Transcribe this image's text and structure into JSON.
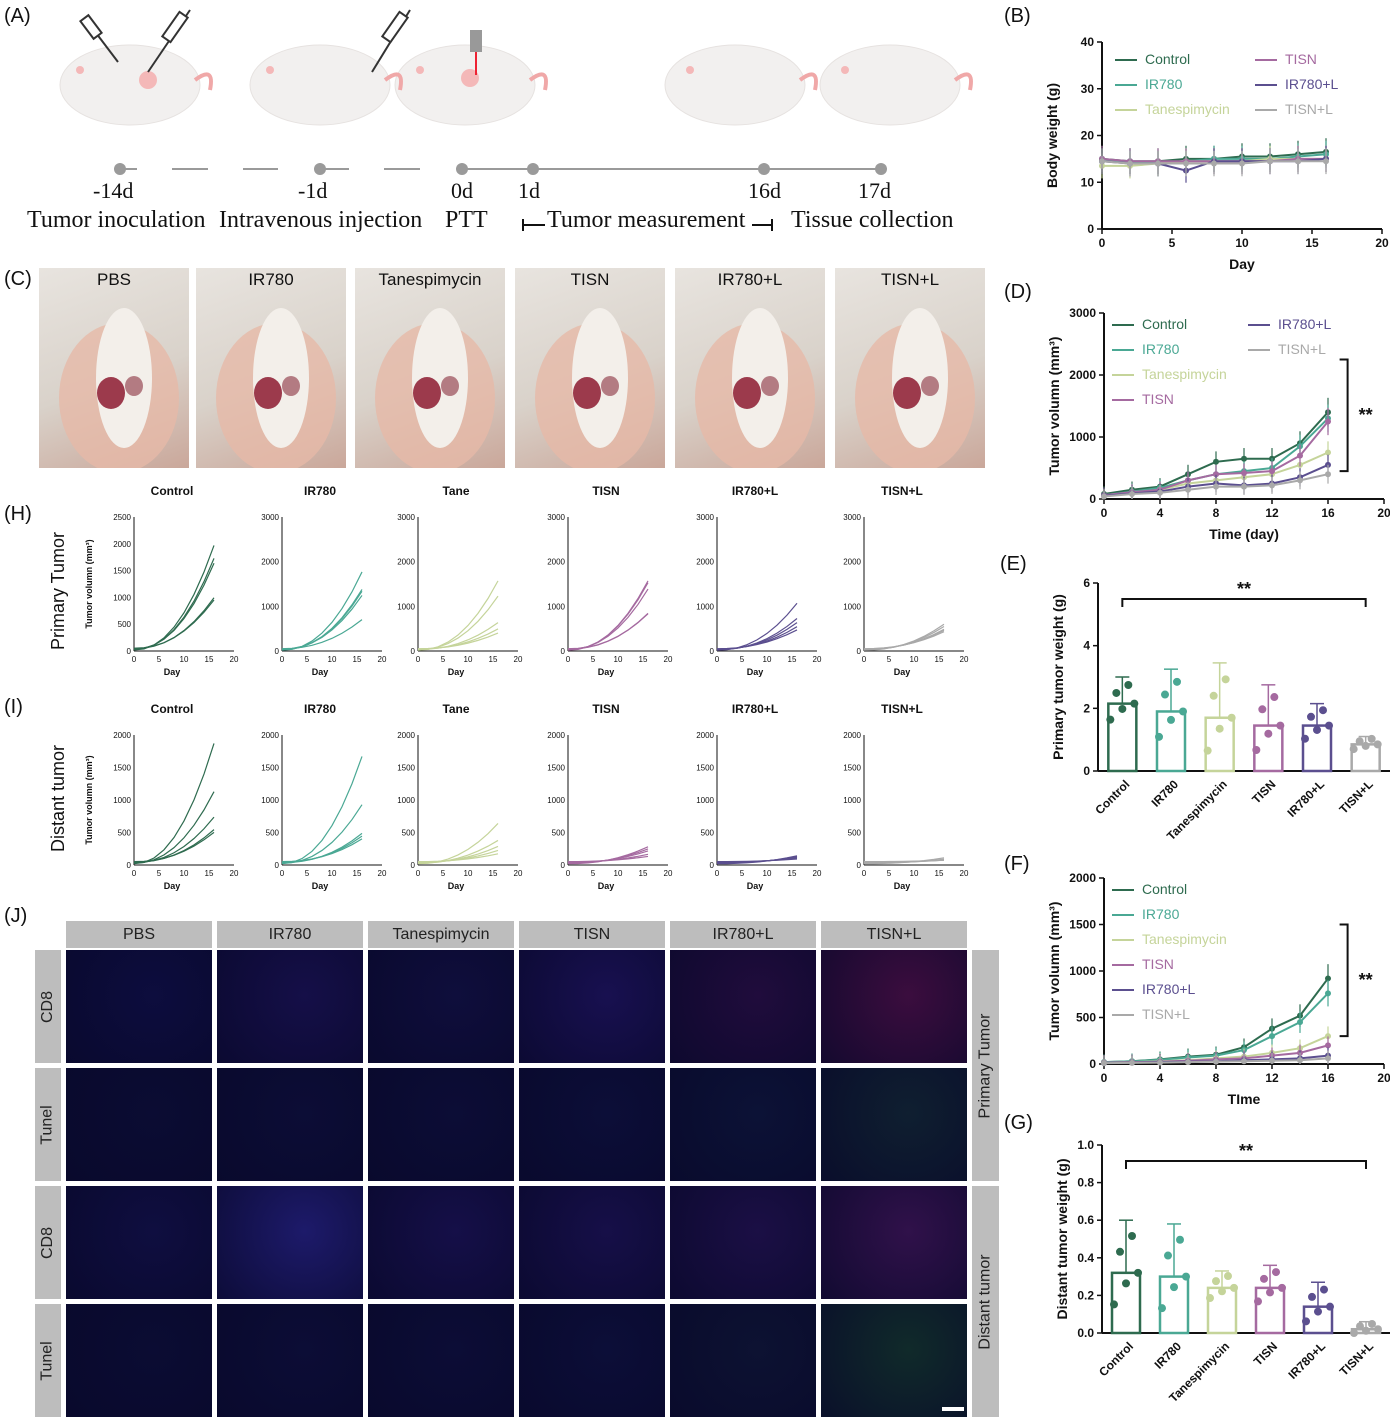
{
  "panels": {
    "A": "(A)",
    "B": "(B)",
    "C": "(C)",
    "D": "(D)",
    "E": "(E)",
    "F": "(F)",
    "G": "(G)",
    "H": "(H)",
    "I": "(I)",
    "J": "(J)"
  },
  "timeline": {
    "days": [
      "-14d",
      "-1d",
      "0d",
      "1d",
      "16d",
      "17d"
    ],
    "steps": [
      "Tumor inoculation",
      "Intravenous injection",
      "PTT",
      "Tumor measurement",
      "Tissue collection"
    ]
  },
  "photos": [
    "PBS",
    "IR780",
    "Tanespimycin",
    "TISN",
    "IR780+L",
    "TISN+L"
  ],
  "row_labels": {
    "H": "Primary Tumor",
    "I": "Distant tumor"
  },
  "fluor": {
    "columns": [
      "PBS",
      "IR780",
      "Tanespimycin",
      "TISN",
      "IR780+L",
      "TISN+L"
    ],
    "rows": [
      "CD8",
      "Tunel",
      "CD8",
      "Tunel"
    ],
    "right": [
      "Primary Tumor",
      "Distant tumor"
    ]
  },
  "colors": {
    "Control": "#2e6b4f",
    "IR780": "#4aa894",
    "Tanespimycin": "#c5d49a",
    "TISN": "#a56aa0",
    "IR780+L": "#5b4f8f",
    "TISN+L": "#a9a9a9"
  },
  "chart_data": [
    {
      "id": "B",
      "type": "line",
      "xlabel": "Day",
      "ylabel": "Body weight (g)",
      "xlim": [
        0,
        20
      ],
      "ylim": [
        0,
        40
      ],
      "xticks": [
        "0",
        "5",
        "10",
        "15",
        "20"
      ],
      "yticks": [
        "0",
        "10",
        "20",
        "30",
        "40"
      ],
      "x": [
        0,
        2,
        4,
        6,
        8,
        10,
        12,
        14,
        16
      ],
      "series": [
        {
          "name": "Control",
          "values": [
            15,
            14.5,
            14.5,
            15,
            15,
            15.5,
            15.5,
            16,
            16.5
          ]
        },
        {
          "name": "IR780",
          "values": [
            14.5,
            14.5,
            14,
            14.5,
            15,
            15,
            15,
            15.5,
            16
          ]
        },
        {
          "name": "Tanespimycin",
          "values": [
            13.5,
            13.5,
            14,
            14.5,
            14.5,
            14.5,
            15,
            15,
            15
          ]
        },
        {
          "name": "TISN",
          "values": [
            15,
            14.5,
            14.5,
            14.5,
            14.5,
            14.5,
            14.5,
            15,
            15
          ]
        },
        {
          "name": "IR780+L",
          "values": [
            14.5,
            14,
            14,
            12.5,
            14.5,
            14.5,
            14.5,
            14.5,
            15
          ]
        },
        {
          "name": "TISN+L",
          "values": [
            14.5,
            14,
            14,
            14,
            14,
            14,
            14.5,
            14.5,
            14.5
          ]
        }
      ]
    },
    {
      "id": "D",
      "type": "line",
      "xlabel": "Time (day)",
      "ylabel": "Tumor volumn (mm³)",
      "xlim": [
        0,
        20
      ],
      "ylim": [
        0,
        3000
      ],
      "xticks": [
        "0",
        "4",
        "8",
        "12",
        "16",
        "20"
      ],
      "yticks": [
        "0",
        "1000",
        "2000",
        "3000"
      ],
      "x": [
        0,
        2,
        4,
        6,
        8,
        10,
        12,
        14,
        16
      ],
      "annotation": "**",
      "series": [
        {
          "name": "Control",
          "values": [
            80,
            150,
            200,
            400,
            600,
            650,
            650,
            900,
            1400
          ]
        },
        {
          "name": "IR780",
          "values": [
            60,
            120,
            180,
            300,
            400,
            450,
            500,
            850,
            1300
          ]
        },
        {
          "name": "Tanespimycin",
          "values": [
            50,
            100,
            150,
            250,
            300,
            350,
            400,
            550,
            750
          ]
        },
        {
          "name": "TISN",
          "values": [
            60,
            110,
            150,
            300,
            400,
            420,
            450,
            700,
            1250
          ]
        },
        {
          "name": "IR780+L",
          "values": [
            50,
            90,
            120,
            200,
            250,
            220,
            250,
            350,
            550
          ]
        },
        {
          "name": "TISN+L",
          "values": [
            40,
            80,
            100,
            150,
            200,
            200,
            220,
            300,
            400
          ]
        }
      ]
    },
    {
      "id": "E",
      "type": "bar",
      "ylabel": "Primary tumor weight (g)",
      "ylim": [
        0,
        6
      ],
      "yticks": [
        "0",
        "2",
        "4",
        "6"
      ],
      "categories": [
        "Control",
        "IR780",
        "Tanespimycin",
        "TISN",
        "IR780+L",
        "TISN+L"
      ],
      "values": [
        2.15,
        1.9,
        1.7,
        1.45,
        1.45,
        0.85
      ],
      "errors": [
        0.85,
        1.35,
        1.75,
        1.3,
        0.7,
        0.25
      ],
      "annotation": "**"
    },
    {
      "id": "F",
      "type": "line",
      "xlabel": "TIme",
      "ylabel": "Tumor volumn (mm³)",
      "xlim": [
        0,
        20
      ],
      "ylim": [
        0,
        2000
      ],
      "xticks": [
        "0",
        "4",
        "8",
        "12",
        "16",
        "20"
      ],
      "yticks": [
        "0",
        "500",
        "1000",
        "1500",
        "2000"
      ],
      "x": [
        0,
        2,
        4,
        6,
        8,
        10,
        12,
        14,
        16
      ],
      "annotation": "**",
      "series": [
        {
          "name": "Control",
          "values": [
            20,
            30,
            50,
            80,
            100,
            180,
            380,
            520,
            920
          ]
        },
        {
          "name": "IR780",
          "values": [
            20,
            30,
            45,
            70,
            90,
            150,
            300,
            450,
            760
          ]
        },
        {
          "name": "Tanespimycin",
          "values": [
            15,
            20,
            30,
            40,
            60,
            80,
            120,
            170,
            300
          ]
        },
        {
          "name": "TISN",
          "values": [
            15,
            20,
            25,
            35,
            50,
            60,
            90,
            120,
            200
          ]
        },
        {
          "name": "IR780+L",
          "values": [
            10,
            15,
            20,
            25,
            30,
            40,
            50,
            60,
            90
          ]
        },
        {
          "name": "TISN+L",
          "values": [
            10,
            12,
            15,
            20,
            25,
            30,
            35,
            40,
            60
          ]
        }
      ]
    },
    {
      "id": "G",
      "type": "bar",
      "ylabel": "Distant tumor weight (g)",
      "ylim": [
        0,
        1.0
      ],
      "yticks": [
        "0.0",
        "0.2",
        "0.4",
        "0.6",
        "0.8",
        "1.0"
      ],
      "categories": [
        "Control",
        "IR780",
        "Tanespimycin",
        "TISN",
        "IR780+L",
        "TISN+L"
      ],
      "values": [
        0.32,
        0.3,
        0.24,
        0.24,
        0.14,
        0.02
      ],
      "errors": [
        0.28,
        0.28,
        0.09,
        0.12,
        0.13,
        0.04
      ],
      "annotation": "**"
    },
    {
      "id": "H",
      "type": "line",
      "titles": [
        "Control",
        "IR780",
        "Tane",
        "TISN",
        "IR780+L",
        "TISN+L"
      ],
      "xlabel": "Day",
      "ylabel": "Tumor volumn (mm³)",
      "ymax": [
        2500,
        3000,
        3000,
        3000,
        3000,
        3000
      ],
      "yticks": [
        [
          "0",
          "500",
          "1000",
          "1500",
          "2000",
          "2500"
        ],
        [
          "0",
          "1000",
          "2000",
          "3000"
        ],
        [
          "0",
          "1000",
          "2000",
          "3000"
        ],
        [
          "0",
          "1000",
          "2000",
          "3000"
        ],
        [
          "0",
          "1000",
          "2000",
          "3000"
        ],
        [
          "0",
          "1000",
          "2000",
          "3000"
        ]
      ],
      "xticks": [
        "0",
        "5",
        "10",
        "15",
        "20"
      ],
      "finals": [
        [
          1950,
          1700,
          1600,
          950,
          900
        ],
        [
          1750,
          1350,
          1300,
          1200,
          650
        ],
        [
          1550,
          1200,
          600,
          450,
          350
        ],
        [
          1550,
          1500,
          1350,
          800,
          780
        ],
        [
          1050,
          700,
          600,
          500,
          420
        ],
        [
          580,
          520,
          450,
          420,
          380
        ]
      ]
    },
    {
      "id": "I",
      "type": "line",
      "titles": [
        "Control",
        "IR780",
        "Tane",
        "TISN",
        "IR780+L",
        "TISN+L"
      ],
      "xlabel": "Day",
      "ylabel": "Tumor volumn (mm³)",
      "ymax": [
        2000,
        2000,
        2000,
        2000,
        2000,
        2000
      ],
      "yticks": [
        "0",
        "500",
        "1000",
        "1500",
        "2000"
      ],
      "xticks": [
        "0",
        "5",
        "10",
        "15",
        "20"
      ],
      "finals": [
        [
          1850,
          1100,
          700,
          500,
          450
        ],
        [
          1650,
          900,
          450,
          400,
          350
        ],
        [
          620,
          350,
          250,
          180,
          120
        ],
        [
          260,
          220,
          180,
          120,
          80
        ],
        [
          120,
          100,
          80,
          60,
          40
        ],
        [
          90,
          60,
          40,
          30,
          20
        ]
      ]
    }
  ]
}
